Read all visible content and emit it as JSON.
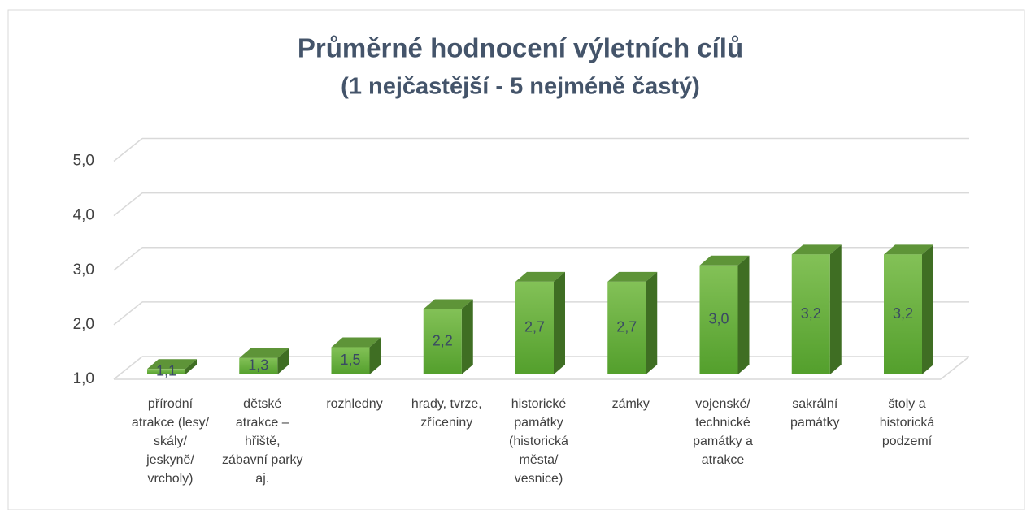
{
  "chart_data": {
    "type": "bar3d",
    "title": "Průměrné hodnocení výletních cílů",
    "subtitle": "(1 nejčastější - 5 nejméně častý)",
    "categories": [
      "přírodní atrakce (lesy/ skály/ jeskyně/ vrcholy)",
      "dětské atrakce – hřiště, zábavní parky aj.",
      "rozhledny",
      "hrady, tvrze, zříceniny",
      "historické památky (historická města/ vesnice)",
      "zámky",
      "vojenské/ technické památky a atrakce",
      "sakrální památky",
      "štoly a historická podzemí"
    ],
    "values": [
      1.1,
      1.3,
      1.5,
      2.2,
      2.7,
      2.7,
      3.0,
      3.2,
      3.2
    ],
    "value_labels": [
      "1,1",
      "1,3",
      "1,5",
      "2,2",
      "2,7",
      "2,7",
      "3,0",
      "3,2",
      "3,2"
    ],
    "color": "#6aaf3d",
    "ylim": [
      1,
      5
    ],
    "yticks": [
      {
        "value": 1,
        "label": "1,0"
      },
      {
        "value": 2,
        "label": "2,0"
      },
      {
        "value": 3,
        "label": "3,0"
      },
      {
        "value": 4,
        "label": "4,0"
      },
      {
        "value": 5,
        "label": "5,0"
      }
    ],
    "grid": true
  }
}
